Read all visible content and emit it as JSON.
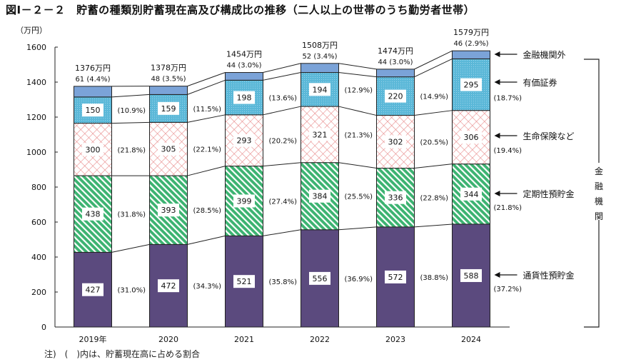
{
  "title": "図Ⅰ－２－２　貯蓄の種類別貯蓄現在高及び構成比の推移（二人以上の世帯のうち勤労者世帯）",
  "note": "注)　(　)内は、貯蓄現在高に占める割合",
  "chart_data": {
    "type": "bar",
    "stacked": true,
    "title": "図Ⅰ－２－２　貯蓄の種類別貯蓄現在高及び構成比の推移（二人以上の世帯のうち勤労者世帯）",
    "ylabel": "（万円）",
    "ylim": [
      0,
      1600
    ],
    "yticks": [
      0,
      200,
      400,
      600,
      800,
      1000,
      1200,
      1400,
      1600
    ],
    "grid": false,
    "categories": [
      "2019年",
      "2020",
      "2021",
      "2022",
      "2023",
      "2024"
    ],
    "totals": [
      "1376万円",
      "1378万円",
      "1454万円",
      "1508万円",
      "1474万円",
      "1579万円"
    ],
    "series": [
      {
        "name": "通貨性預貯金",
        "values": [
          427,
          472,
          521,
          556,
          572,
          588
        ],
        "shares": [
          "(31.0%)",
          "(34.3%)",
          "(35.8%)",
          "(36.9%)",
          "(38.8%)",
          "(37.2%)"
        ],
        "color": "#5b4a7e"
      },
      {
        "name": "定期性預貯金",
        "values": [
          438,
          393,
          399,
          384,
          336,
          344
        ],
        "shares": [
          "(31.8%)",
          "(28.5%)",
          "(27.4%)",
          "(25.5%)",
          "(22.8%)",
          "(21.8%)"
        ],
        "color": "#3cb371"
      },
      {
        "name": "生命保険など",
        "values": [
          300,
          305,
          293,
          321,
          302,
          306
        ],
        "shares": [
          "(21.8%)",
          "(22.1%)",
          "(20.2%)",
          "(21.3%)",
          "(20.5%)",
          "(19.4%)"
        ],
        "color": "#e88a8a"
      },
      {
        "name": "有価証券",
        "values": [
          150,
          159,
          198,
          194,
          220,
          295
        ],
        "shares": [
          "(10.9%)",
          "(11.5%)",
          "(13.6%)",
          "(12.9%)",
          "(14.9%)",
          "(18.7%)"
        ],
        "color": "#5bb8d8"
      },
      {
        "name": "金融機関外",
        "values": [
          61,
          48,
          44,
          52,
          44,
          46
        ],
        "shares": [
          "(4.4%)",
          "(3.5%)",
          "(3.0%)",
          "(3.4%)",
          "(3.0%)",
          "(2.9%)"
        ],
        "color": "#7ba3d8"
      }
    ],
    "group_label": "金融機関"
  }
}
